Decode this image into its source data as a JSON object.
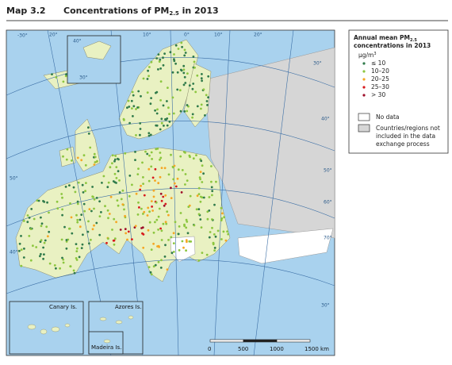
{
  "header": {
    "label": "Map 3.2",
    "title": {
      "pre": "Concentrations of PM",
      "sub": "2.5",
      "post": " in 2013"
    }
  },
  "legend": {
    "title": {
      "line1_pre": "Annual mean PM",
      "line1_sub": "2.5",
      "line2": "concentrations in 2013"
    },
    "unit": {
      "pre": "µg/m",
      "sup": "3"
    },
    "items": [
      {
        "label": "≤ 10",
        "color": "#2f7a4a"
      },
      {
        "label": "10–20",
        "color": "#8cc63f"
      },
      {
        "label": "20–25",
        "color": "#f5a623"
      },
      {
        "label": "25–30",
        "color": "#d7191c"
      },
      {
        "label": "> 30",
        "color": "#9e0e2a"
      }
    ],
    "no_data": "No data",
    "not_included": [
      "Countries/regions not",
      "included in the data",
      "exchange process"
    ]
  },
  "insets": {
    "canary": "Canary Is.",
    "azores": "Azores Is.",
    "madeira": "Madeira Is."
  },
  "scale": [
    "0",
    "500",
    "1000",
    "1500 km"
  ],
  "graticule": [
    "-30°",
    "50°",
    "40°",
    "30°",
    "20°",
    "10°",
    "0°",
    "10°",
    "20°",
    "30°",
    "40°",
    "50°",
    "60°",
    "70°",
    "40°",
    "30°"
  ]
}
